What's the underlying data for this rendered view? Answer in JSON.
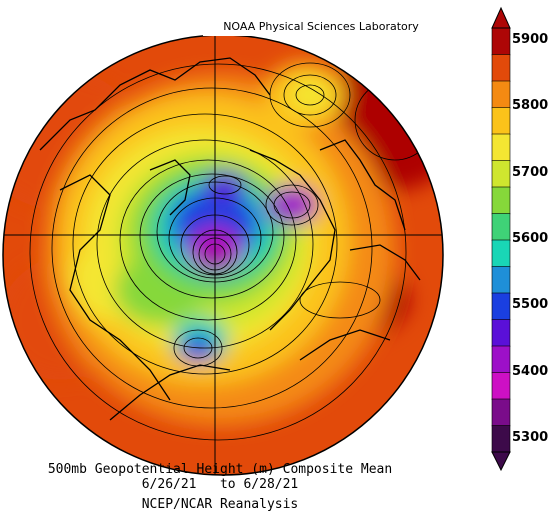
{
  "credit": "NOAA Physical Sciences Laboratory",
  "caption": {
    "line1": "500mb Geopotential Height (m) Composite Mean",
    "line2": "6/26/21   to 6/28/21",
    "line3": "NCEP/NCAR Reanalysis"
  },
  "colorbar": {
    "ticks": [
      "5900",
      "5800",
      "5700",
      "5600",
      "5500",
      "5400",
      "5300"
    ],
    "colors": [
      "#ad0606",
      "#e24a0a",
      "#f48a12",
      "#fbc31a",
      "#f4e632",
      "#cfe62f",
      "#86d83a",
      "#3fd277",
      "#19d6b6",
      "#1f8fd8",
      "#1a3fe0",
      "#5a10d8",
      "#9d10c8",
      "#cd10c4",
      "#7a0c8a",
      "#3d0a4a"
    ]
  },
  "fields": {
    "background_color": "#e24a0a"
  }
}
